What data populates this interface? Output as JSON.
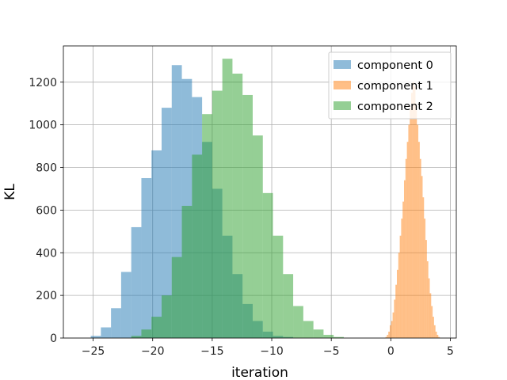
{
  "chart_data": {
    "type": "histogram",
    "xlabel": "iteration",
    "ylabel": "KL",
    "xlim": [
      -27.5,
      5.5
    ],
    "ylim": [
      0,
      1370
    ],
    "xticks": [
      -25,
      -20,
      -15,
      -10,
      -5,
      0,
      5
    ],
    "yticks": [
      0,
      200,
      400,
      600,
      800,
      1000,
      1200
    ],
    "grid": true,
    "legend_position": "top-right",
    "series": [
      {
        "name": "component 0",
        "color": "#1f77b4",
        "opacity": 0.5,
        "bin_width": 0.85,
        "bin_start": -25.2,
        "counts": [
          10,
          50,
          140,
          310,
          520,
          750,
          880,
          1080,
          1280,
          1215,
          1130,
          920,
          700,
          480,
          300,
          160,
          80,
          30,
          10,
          5
        ]
      },
      {
        "name": "component 1",
        "color": "#ff7f0e",
        "opacity": 0.5,
        "bin_width": 0.12,
        "bin_start": -0.45,
        "counts": [
          5,
          15,
          30,
          60,
          80,
          120,
          180,
          250,
          320,
          400,
          480,
          560,
          640,
          740,
          840,
          920,
          1000,
          1080,
          1150,
          1200,
          1180,
          1100,
          1000,
          920,
          840,
          760,
          660,
          560,
          460,
          360,
          280,
          210,
          150,
          100,
          60,
          30,
          15,
          5
        ]
      },
      {
        "name": "component 2",
        "color": "#2ca02c",
        "opacity": 0.5,
        "bin_width": 0.85,
        "bin_start": -21.8,
        "counts": [
          10,
          40,
          100,
          200,
          380,
          620,
          860,
          1050,
          1160,
          1310,
          1240,
          1140,
          950,
          680,
          480,
          300,
          150,
          80,
          40,
          15,
          5
        ]
      }
    ]
  }
}
